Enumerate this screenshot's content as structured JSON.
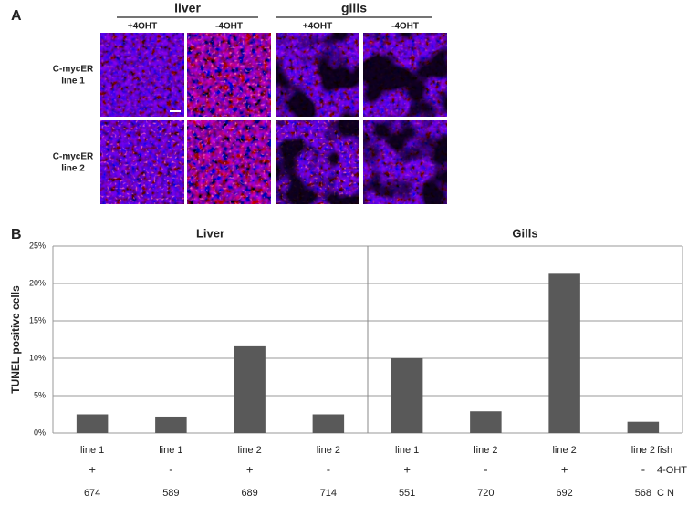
{
  "panel_a": {
    "label": "A",
    "groups": [
      {
        "title": "liver",
        "columns": [
          "+4OHT",
          "-4OHT"
        ]
      },
      {
        "title": "gills",
        "columns": [
          "+4OHT",
          "-4OHT"
        ]
      }
    ],
    "rows": [
      [
        "C-mycER",
        "line 1"
      ],
      [
        "C-mycER",
        "line 2"
      ]
    ]
  },
  "panel_b": {
    "label": "B"
  },
  "chart_data": {
    "type": "bar",
    "y_label": "TUNEL positive cells",
    "group_titles": [
      "Liver",
      "Gills"
    ],
    "categories": [
      "line 1",
      "line 1",
      "line 2",
      "line 2",
      "line 1",
      "line 2",
      "line 2",
      "line 2"
    ],
    "category_label": "fish",
    "treatment": [
      "+",
      "-",
      "+",
      "-",
      "+",
      "-",
      "+",
      "-"
    ],
    "treatment_label": "4-OHT",
    "cell_counts": [
      674,
      589,
      689,
      714,
      551,
      720,
      692,
      568
    ],
    "cell_count_label": "C N",
    "values": [
      2.5,
      2.2,
      11.6,
      2.5,
      10.0,
      2.9,
      21.3,
      1.5
    ],
    "color": "#595959",
    "ylim": [
      0,
      25
    ],
    "yticks": [
      {
        "value": 0,
        "label": "0%"
      },
      {
        "value": 5,
        "label": "5%"
      },
      {
        "value": 10,
        "label": "10%"
      },
      {
        "value": 15,
        "label": "15%"
      },
      {
        "value": 20,
        "label": "20%"
      },
      {
        "value": 25,
        "label": "25%"
      }
    ],
    "grid": true
  }
}
